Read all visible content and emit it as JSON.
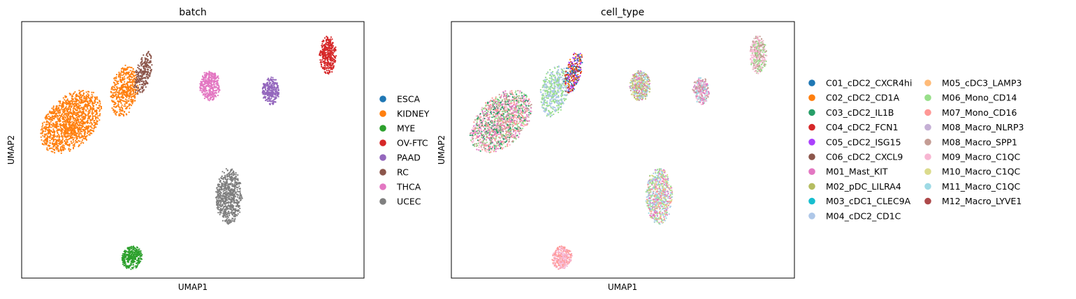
{
  "chart_data": [
    {
      "type": "scatter",
      "title": "batch",
      "xlabel": "UMAP1",
      "ylabel": "UMAP2",
      "xticks": false,
      "yticks": false,
      "legend": {
        "placement": "right",
        "entries": [
          {
            "name": "ESCA",
            "color": "#1f77b4"
          },
          {
            "name": "KIDNEY",
            "color": "#ff7f0e"
          },
          {
            "name": "MYE",
            "color": "#2ca02c"
          },
          {
            "name": "OV-FTC",
            "color": "#d62728"
          },
          {
            "name": "PAAD",
            "color": "#9467bd"
          },
          {
            "name": "RC",
            "color": "#8c564b"
          },
          {
            "name": "THCA",
            "color": "#e377c2"
          },
          {
            "name": "UCEC",
            "color": "#7f7f7f"
          }
        ]
      },
      "clusters": [
        {
          "series": "KIDNEY",
          "center": [
            2.6,
            6.1
          ],
          "spread": [
            1.75,
            1.05
          ],
          "rotation": 28,
          "weight": 1400
        },
        {
          "series": "KIDNEY",
          "center": [
            5.4,
            7.3
          ],
          "spread": [
            0.7,
            1.05
          ],
          "rotation": -20,
          "weight": 500
        },
        {
          "series": "RC",
          "center": [
            6.4,
            8.0
          ],
          "spread": [
            0.4,
            0.9
          ],
          "rotation": -22,
          "weight": 250
        },
        {
          "series": "THCA",
          "center": [
            9.9,
            7.5
          ],
          "spread": [
            0.55,
            0.6
          ],
          "rotation": 0,
          "weight": 380
        },
        {
          "series": "PAAD",
          "center": [
            13.1,
            7.3
          ],
          "spread": [
            0.45,
            0.55
          ],
          "rotation": 0,
          "weight": 280
        },
        {
          "series": "OV-FTC",
          "center": [
            16.1,
            8.7
          ],
          "spread": [
            0.45,
            0.75
          ],
          "rotation": 0,
          "weight": 340
        },
        {
          "series": "UCEC",
          "center": [
            10.9,
            3.2
          ],
          "spread": [
            0.7,
            1.1
          ],
          "rotation": 0,
          "weight": 700
        },
        {
          "series": "MYE",
          "center": [
            5.8,
            0.8
          ],
          "spread": [
            0.55,
            0.45
          ],
          "rotation": 18,
          "weight": 320
        }
      ]
    },
    {
      "type": "scatter",
      "title": "cell_type",
      "xlabel": "UMAP1",
      "ylabel": "UMAP2",
      "xticks": false,
      "yticks": false,
      "legend": {
        "placement": "right",
        "columns": 2,
        "entries": [
          {
            "name": "C01_cDC2_CXCR4hi",
            "color": "#1f77b4"
          },
          {
            "name": "C02_cDC2_CD1A",
            "color": "#ff7f0e"
          },
          {
            "name": "C03_cDC2_IL1B",
            "color": "#279e68"
          },
          {
            "name": "C04_cDC2_FCN1",
            "color": "#d62728"
          },
          {
            "name": "C05_cDC2_ISG15",
            "color": "#aa40fc"
          },
          {
            "name": "C06_cDC2_CXCL9",
            "color": "#8c564b"
          },
          {
            "name": "M01_Mast_KIT",
            "color": "#e377c2"
          },
          {
            "name": "M02_pDC_LILRA4",
            "color": "#b5bd61"
          },
          {
            "name": "M03_cDC1_CLEC9A",
            "color": "#17becf"
          },
          {
            "name": "M04_cDC2_CD1C",
            "color": "#aec7e8"
          },
          {
            "name": "M05_cDC3_LAMP3",
            "color": "#ffbb78"
          },
          {
            "name": "M06_Mono_CD14",
            "color": "#98df8a"
          },
          {
            "name": "M07_Mono_CD16",
            "color": "#ff9896"
          },
          {
            "name": "M08_Macro_NLRP3",
            "color": "#c5b0d5"
          },
          {
            "name": "M08_Macro_SPP1",
            "color": "#c49c94"
          },
          {
            "name": "M09_Macro_C1QC",
            "color": "#f7b6d2"
          },
          {
            "name": "M10_Macro_C1QC",
            "color": "#dbdb8d"
          },
          {
            "name": "M11_Macro_C1QC",
            "color": "#9edae5"
          },
          {
            "name": "M12_Macro_LYVE1",
            "color": "#ad494a"
          }
        ]
      },
      "clusters": [
        {
          "series": [
            "M07_Mono_CD16",
            "M01_Mast_KIT",
            "M06_Mono_CD14",
            "C03_cDC2_IL1B",
            "M09_Macro_C1QC",
            "M08_Macro_SPP1"
          ],
          "center": [
            2.6,
            6.1
          ],
          "spread": [
            1.75,
            1.05
          ],
          "rotation": 28,
          "weight": 1400
        },
        {
          "series": [
            "M04_cDC2_CD1C",
            "M06_Mono_CD14"
          ],
          "center": [
            5.4,
            7.3
          ],
          "spread": [
            0.7,
            1.05
          ],
          "rotation": -20,
          "weight": 500
        },
        {
          "series": [
            "C01_cDC2_CXCR4hi",
            "C06_cDC2_CXCL9",
            "C04_cDC2_FCN1",
            "C02_cDC2_CD1A",
            "C05_cDC2_ISG15"
          ],
          "center": [
            6.4,
            8.0
          ],
          "spread": [
            0.4,
            0.9
          ],
          "rotation": -22,
          "weight": 250
        },
        {
          "series": [
            "M10_Macro_C1QC",
            "M02_pDC_LILRA4",
            "M08_Macro_SPP1",
            "M11_Macro_C1QC",
            "M01_Mast_KIT"
          ],
          "center": [
            9.9,
            7.5
          ],
          "spread": [
            0.55,
            0.6
          ],
          "rotation": 0,
          "weight": 380
        },
        {
          "series": [
            "M01_Mast_KIT",
            "M09_Macro_C1QC",
            "M11_Macro_C1QC",
            "M08_Macro_SPP1"
          ],
          "center": [
            13.1,
            7.3
          ],
          "spread": [
            0.45,
            0.55
          ],
          "rotation": 0,
          "weight": 280
        },
        {
          "series": [
            "M08_Macro_SPP1",
            "M09_Macro_C1QC",
            "M06_Mono_CD14"
          ],
          "center": [
            16.1,
            8.7
          ],
          "spread": [
            0.45,
            0.75
          ],
          "rotation": 0,
          "weight": 340
        },
        {
          "series": [
            "M07_Mono_CD16",
            "M06_Mono_CD14",
            "M01_Mast_KIT",
            "M04_cDC2_CD1C",
            "M10_Macro_C1QC",
            "M11_Macro_C1QC"
          ],
          "center": [
            10.9,
            3.2
          ],
          "spread": [
            0.7,
            1.1
          ],
          "rotation": 0,
          "weight": 700
        },
        {
          "series": [
            "M07_Mono_CD16",
            "M09_Macro_C1QC"
          ],
          "center": [
            5.8,
            0.8
          ],
          "spread": [
            0.55,
            0.45
          ],
          "rotation": 18,
          "weight": 320
        }
      ],
      "xlim": [
        0,
        18
      ],
      "ylim": [
        0,
        10
      ]
    }
  ]
}
